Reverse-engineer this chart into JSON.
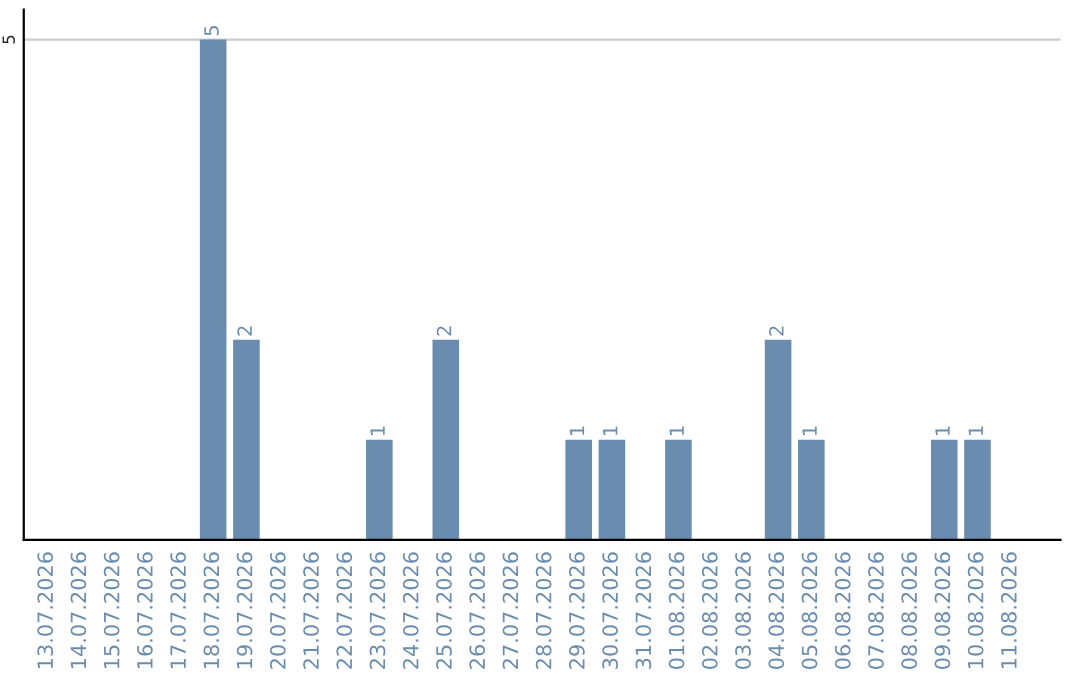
{
  "chart_data": {
    "type": "bar",
    "categories": [
      "13.07.2026",
      "14.07.2026",
      "15.07.2026",
      "16.07.2026",
      "17.07.2026",
      "18.07.2026",
      "19.07.2026",
      "20.07.2026",
      "21.07.2026",
      "22.07.2026",
      "23.07.2026",
      "24.07.2026",
      "25.07.2026",
      "26.07.2026",
      "27.07.2026",
      "28.07.2026",
      "29.07.2026",
      "30.07.2026",
      "31.07.2026",
      "01.08.2026",
      "02.08.2026",
      "03.08.2026",
      "04.08.2026",
      "05.08.2026",
      "06.08.2026",
      "07.08.2026",
      "08.08.2026",
      "09.08.2026",
      "10.08.2026",
      "11.08.2026"
    ],
    "values": [
      0,
      0,
      0,
      0,
      0,
      5,
      2,
      0,
      0,
      0,
      1,
      0,
      2,
      0,
      0,
      0,
      1,
      1,
      0,
      1,
      0,
      0,
      2,
      1,
      0,
      0,
      0,
      1,
      1,
      0
    ],
    "value_labels": [
      null,
      null,
      null,
      null,
      null,
      "5",
      "2",
      null,
      null,
      null,
      "1",
      null,
      "2",
      null,
      null,
      null,
      "1",
      "1",
      null,
      "1",
      null,
      null,
      "2",
      "1",
      null,
      null,
      null,
      "1",
      "1",
      null
    ],
    "color": "#6a8caf",
    "ylim": [
      0,
      5.3
    ],
    "yticks": [
      5
    ],
    "grid": "y"
  }
}
